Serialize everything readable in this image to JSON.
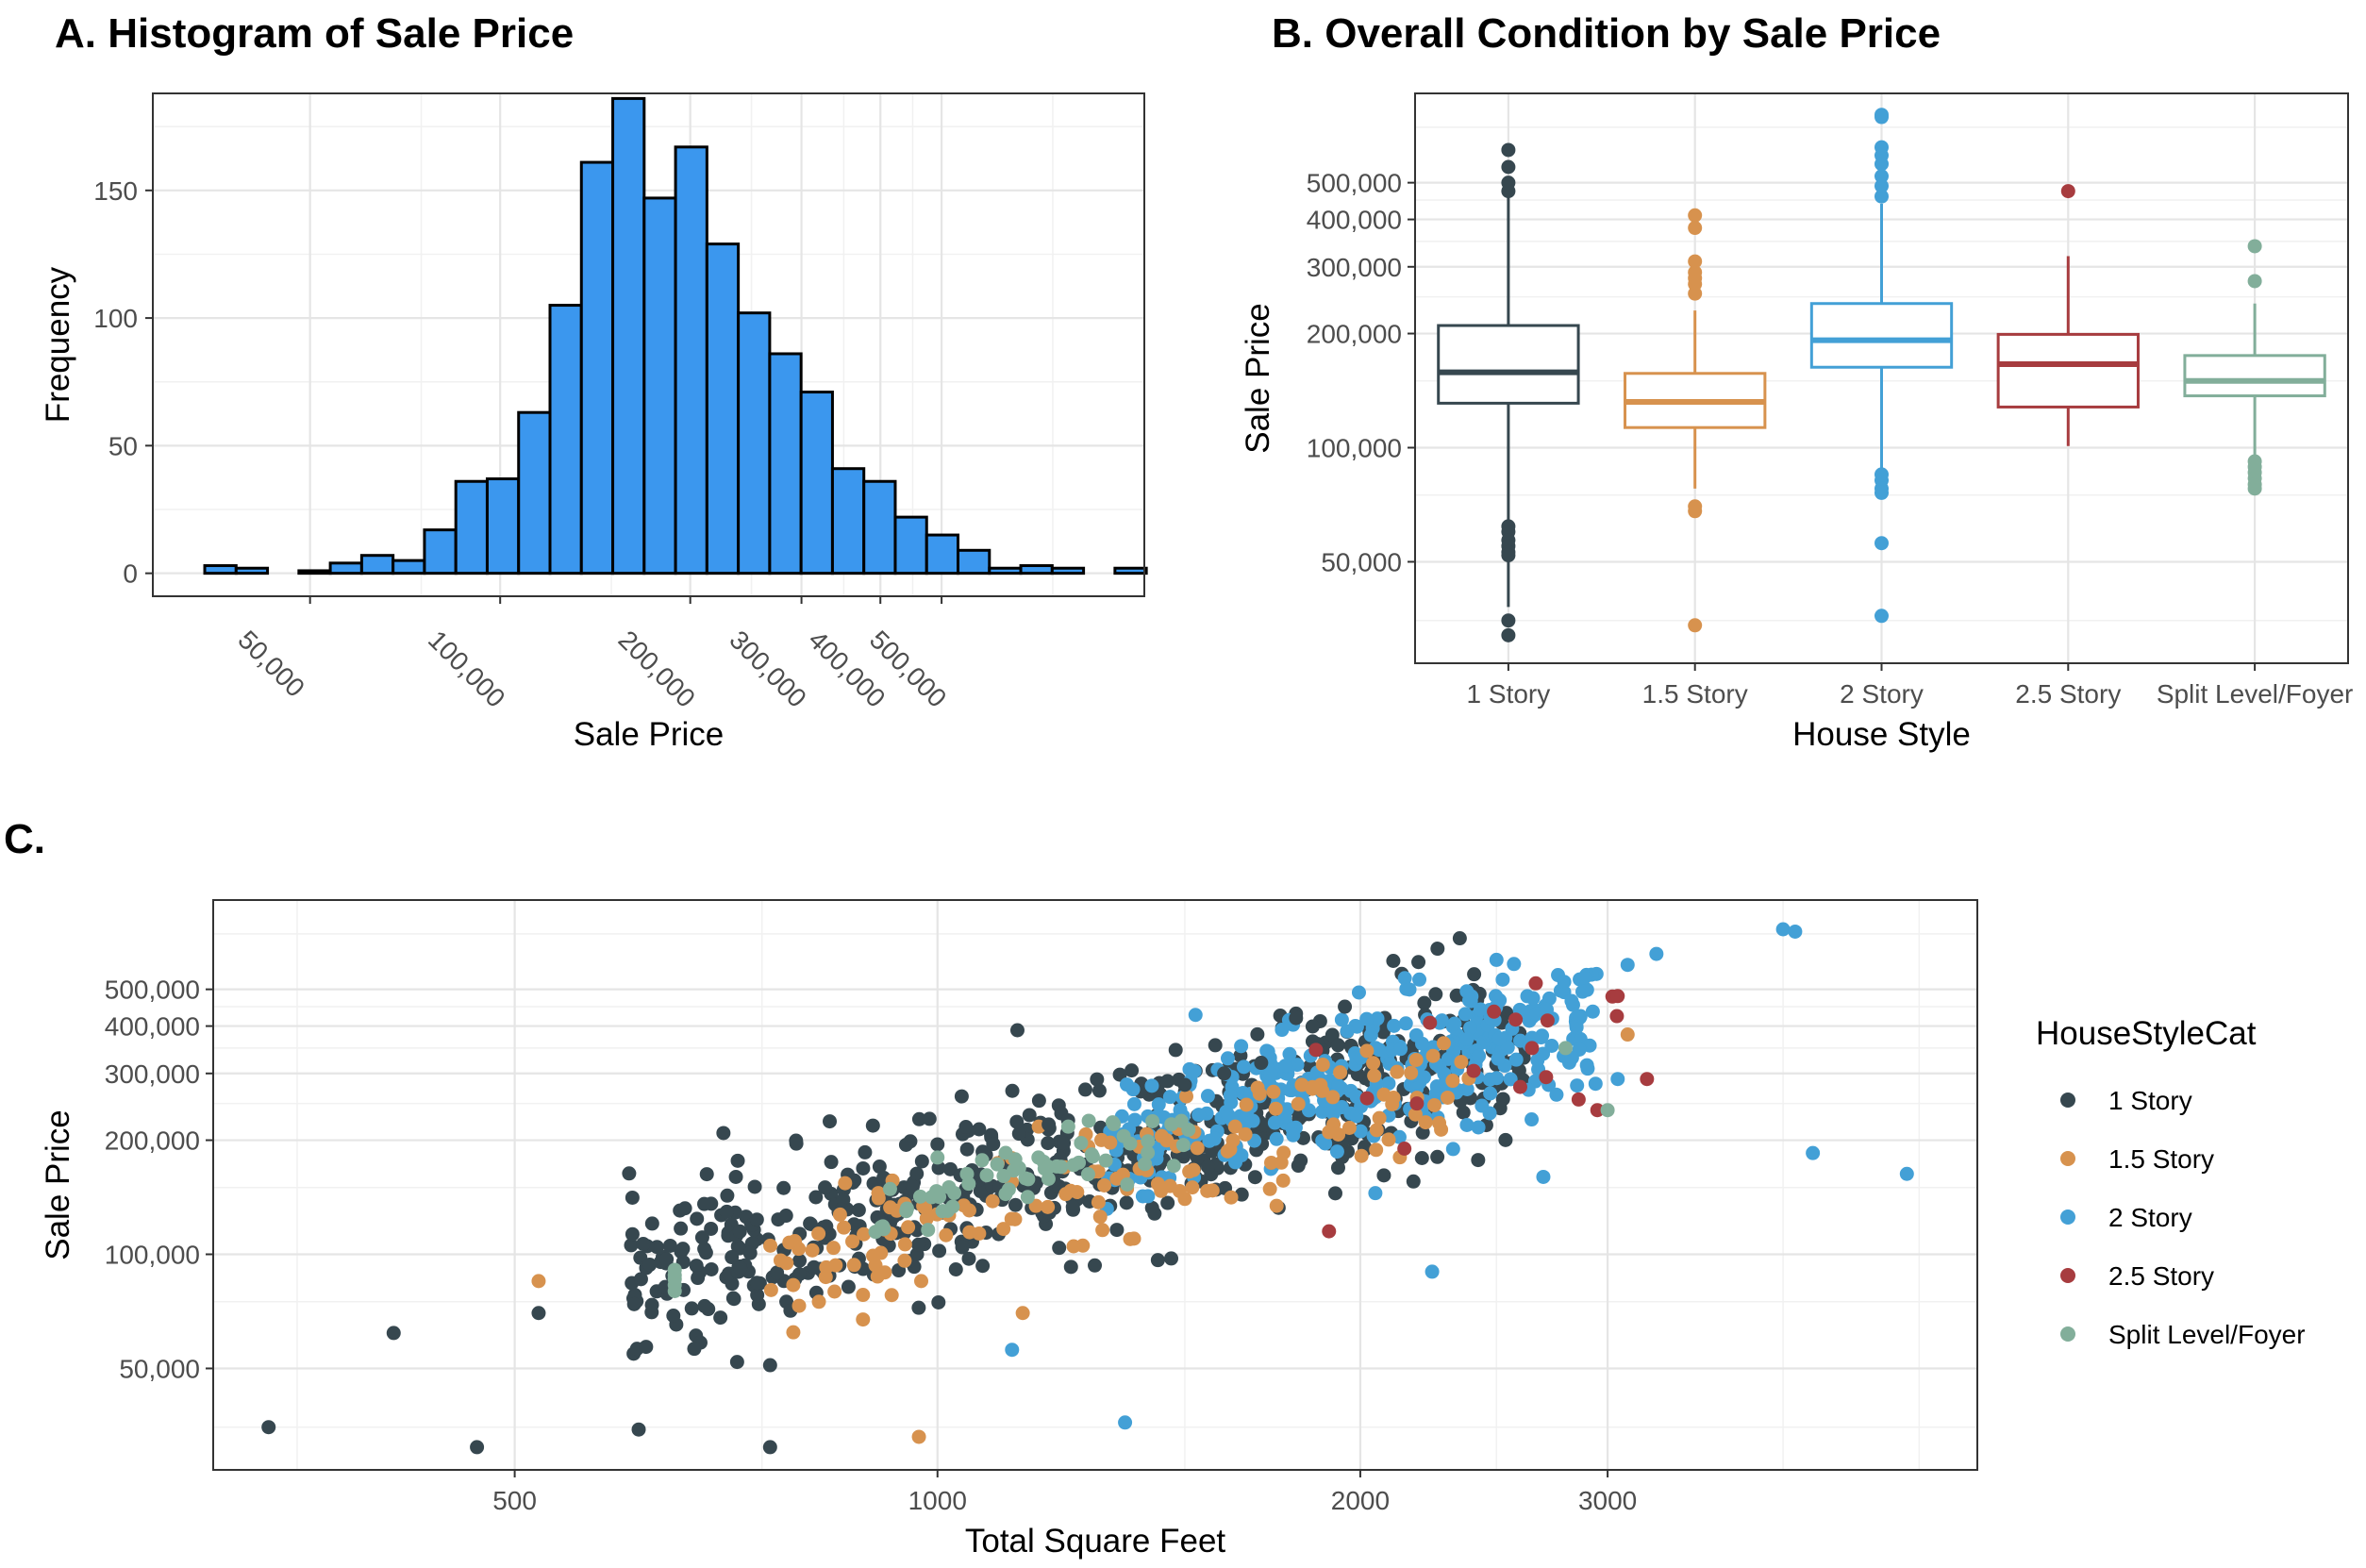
{
  "colors": {
    "1 Story": "#36474f",
    "1.5 Story": "#d7924e",
    "2 Story": "#43a0d6",
    "2.5 Story": "#a73c3f",
    "Split Level/Foyer": "#82ae9a",
    "histogram_fill": "#3b97ee"
  },
  "chart_data": [
    {
      "id": "A",
      "type": "bar",
      "title": "A. Histogram of Sale Price",
      "xlabel": "Sale Price",
      "ylabel": "Frequency",
      "x_scale": "log10",
      "x_ticks": [
        50000,
        100000,
        200000,
        300000,
        400000,
        500000
      ],
      "x_tick_labels": [
        "50,000",
        "100,000",
        "200,000",
        "300,000",
        "400,000",
        "500,000"
      ],
      "y_ticks": [
        0,
        50,
        100,
        150
      ],
      "y_tick_labels": [
        "0",
        "50",
        "100",
        "150"
      ],
      "ylim": [
        -9,
        188
      ],
      "bins_log10_start": 4.5322,
      "bin_width_log10": 0.0497,
      "counts": [
        3,
        2,
        0,
        1,
        4,
        7,
        5,
        17,
        36,
        37,
        63,
        105,
        161,
        186,
        147,
        167,
        129,
        102,
        86,
        71,
        41,
        36,
        22,
        15,
        9,
        2,
        3,
        2,
        0,
        2
      ],
      "grid": true
    },
    {
      "id": "B",
      "type": "box",
      "title": "B. Overall Condition by Sale Price",
      "xlabel": "House Style",
      "ylabel": "Sale Price",
      "y_scale": "log10",
      "y_ticks": [
        50000,
        100000,
        200000,
        300000,
        400000,
        500000
      ],
      "y_tick_labels": [
        "50,000",
        "100,000",
        "200,000",
        "300,000",
        "400,000",
        "500,000"
      ],
      "categories": [
        "1 Story",
        "1.5 Story",
        "2 Story",
        "2.5 Story",
        "Split Level/Foyer"
      ],
      "boxes": [
        {
          "name": "1 Story",
          "whisker_low": 38000,
          "q1": 131000,
          "median": 158000,
          "q3": 210000,
          "whisker_high": 470000,
          "outliers": [
            62000,
            60000,
            57000,
            55000,
            53000,
            52000,
            35000,
            32000,
            550000,
            610000,
            475000,
            500000
          ]
        },
        {
          "name": "1.5 Story",
          "whisker_low": 78000,
          "q1": 113000,
          "median": 132000,
          "q3": 157000,
          "whisker_high": 230000,
          "outliers": [
            70000,
            68000,
            34000,
            255000,
            270000,
            280000,
            290000,
            310000,
            380000,
            410000
          ]
        },
        {
          "name": "2 Story",
          "whisker_low": 87000,
          "q1": 163000,
          "median": 192000,
          "q3": 240000,
          "whisker_high": 440000,
          "outliers": [
            85000,
            82000,
            78000,
            76000,
            56000,
            36000,
            460000,
            490000,
            520000,
            560000,
            590000,
            620000,
            745000,
            755000
          ]
        },
        {
          "name": "2.5 Story",
          "whisker_low": 101000,
          "q1": 128000,
          "median": 166000,
          "q3": 199000,
          "whisker_high": 320000,
          "outliers": [
            475000
          ]
        },
        {
          "name": "Split Level/Foyer",
          "whisker_low": 94000,
          "q1": 137000,
          "median": 150000,
          "q3": 175000,
          "whisker_high": 240000,
          "outliers": [
            92000,
            89000,
            86000,
            83000,
            80000,
            78000,
            275000,
            340000
          ]
        }
      ],
      "grid": true
    },
    {
      "id": "C",
      "type": "scatter",
      "title": "C.",
      "xlabel": "Total Square Feet",
      "ylabel": "Sale Price",
      "x_scale": "log10",
      "y_scale": "log10",
      "x_ticks": [
        500,
        1000,
        2000,
        3000
      ],
      "x_tick_labels": [
        "500",
        "1000",
        "2000",
        "3000"
      ],
      "y_ticks": [
        50000,
        100000,
        200000,
        300000,
        400000,
        500000
      ],
      "y_tick_labels": [
        "50,000",
        "100,000",
        "200,000",
        "300,000",
        "400,000",
        "500,000"
      ],
      "legend_title": "HouseStyleCat",
      "legend_position": "right",
      "series_names": [
        "1 Story",
        "1.5 Story",
        "2 Story",
        "2.5 Story",
        "Split Level/Foyer"
      ],
      "grid": true,
      "points": [
        {
          "s": "1 Story",
          "pts": [
            [
              334,
              35000
            ],
            [
              410,
              62000
            ],
            [
              470,
              31000
            ],
            [
              520,
              70000
            ],
            [
              615,
              86000
            ],
            [
              640,
              82000
            ],
            [
              720,
              52000
            ],
            [
              760,
              51000
            ],
            [
              760,
              31000
            ],
            [
              1140,
              390000
            ],
            [
              1800,
              420000
            ],
            [
              2200,
              590000
            ],
            [
              2270,
              640000
            ],
            [
              1950,
              450000
            ],
            [
              1000,
              195000
            ],
            [
              1200,
              220000
            ],
            [
              1500,
              280000
            ],
            [
              1600,
              300000
            ],
            [
              1700,
              320000
            ]
          ]
        },
        {
          "s": "1.5 Story",
          "pts": [
            [
              520,
              85000
            ],
            [
              970,
              33000
            ],
            [
              1250,
              105000
            ],
            [
              1380,
              110000
            ],
            [
              1500,
              140000
            ],
            [
              3100,
              380000
            ],
            [
              1150,
              70000
            ],
            [
              1900,
              210000
            ]
          ]
        },
        {
          "s": "2 Story",
          "pts": [
            [
              1360,
              36000
            ],
            [
              1130,
              56000
            ],
            [
              4000,
              720000
            ],
            [
              4080,
              710000
            ],
            [
              3250,
              620000
            ],
            [
              3100,
              580000
            ],
            [
              4200,
              185000
            ],
            [
              4900,
              163000
            ],
            [
              2050,
              145000
            ],
            [
              2250,
              90000
            ],
            [
              2700,
              160000
            ],
            [
              3050,
              290000
            ],
            [
              2830,
              330000
            ]
          ]
        },
        {
          "s": "2.5 Story",
          "pts": [
            [
              3050,
              480000
            ],
            [
              3200,
              290000
            ],
            [
              2650,
              350000
            ],
            [
              2950,
              240000
            ],
            [
              1900,
              115000
            ],
            [
              2150,
              190000
            ]
          ]
        },
        {
          "s": "Split Level/Foyer",
          "pts": [
            [
              650,
              80000
            ],
            [
              650,
              83000
            ],
            [
              650,
              86000
            ],
            [
              650,
              88000
            ],
            [
              650,
              91000
            ],
            [
              1200,
              170000
            ],
            [
              1180,
              180000
            ],
            [
              2800,
              350000
            ],
            [
              3000,
              240000
            ],
            [
              1000,
              180000
            ],
            [
              1250,
              172000
            ]
          ]
        }
      ],
      "clouds": [
        {
          "s": "1 Story",
          "n": 620,
          "x_log10_range": [
            2.78,
            3.42
          ],
          "y_rel_mean": [
            0.95,
            1.0
          ],
          "spread": 0.11
        },
        {
          "s": "2 Story",
          "n": 380,
          "x_log10_range": [
            3.12,
            3.47
          ],
          "y_rel_mean": [
            1.0,
            1.0
          ],
          "spread": 0.09
        },
        {
          "s": "1.5 Story",
          "n": 160,
          "x_log10_range": [
            2.88,
            3.38
          ],
          "y_rel_mean": [
            0.8,
            0.8
          ],
          "spread": 0.09
        },
        {
          "s": "2.5 Story",
          "n": 14,
          "x_log10_range": [
            3.25,
            3.5
          ],
          "y_rel_mean": [
            0.85,
            0.85
          ],
          "spread": 0.1
        },
        {
          "s": "Split Level/Foyer",
          "n": 60,
          "x_log10_range": [
            2.95,
            3.18
          ],
          "y_rel_mean": [
            0.98,
            0.98
          ],
          "spread": 0.04
        }
      ]
    }
  ]
}
